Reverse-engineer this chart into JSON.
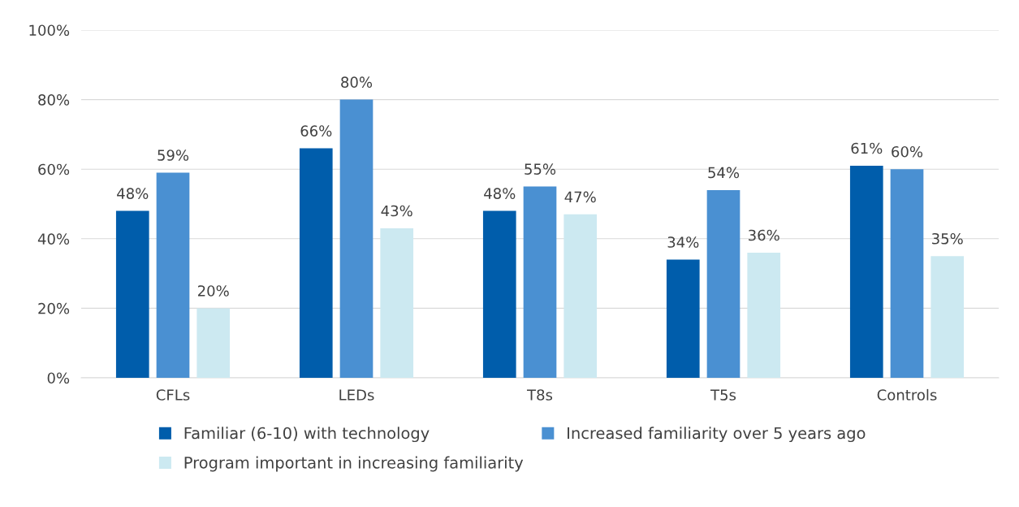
{
  "chart_data": {
    "type": "bar",
    "categories": [
      "CFLs",
      "LEDs",
      "T8s",
      "T5s",
      "Controls"
    ],
    "series": [
      {
        "name": "Familiar (6-10) with technology",
        "color": "#005dab",
        "values": [
          48,
          66,
          48,
          34,
          61
        ],
        "value_labels": [
          "48%",
          "66%",
          "48%",
          "34%",
          "61%"
        ]
      },
      {
        "name": "Increased familiarity over 5 years ago",
        "color": "#4a90d2",
        "values": [
          59,
          80,
          55,
          54,
          60
        ],
        "value_labels": [
          "59%",
          "80%",
          "55%",
          "54%",
          "60%"
        ]
      },
      {
        "name": "Program important in increasing familiarity",
        "color": "#cce9f1",
        "values": [
          20,
          43,
          47,
          36,
          35
        ],
        "value_labels": [
          "20%",
          "43%",
          "47%",
          "36%",
          "35%"
        ]
      }
    ],
    "ylim": [
      0,
      100
    ],
    "yticks": [
      {
        "value": 0,
        "label": "0%"
      },
      {
        "value": 20,
        "label": "20%"
      },
      {
        "value": 40,
        "label": "40%"
      },
      {
        "value": 60,
        "label": "60%"
      },
      {
        "value": 80,
        "label": "80%"
      },
      {
        "value": 100,
        "label": "100%"
      }
    ],
    "grid": "y",
    "legend": "bottom"
  }
}
